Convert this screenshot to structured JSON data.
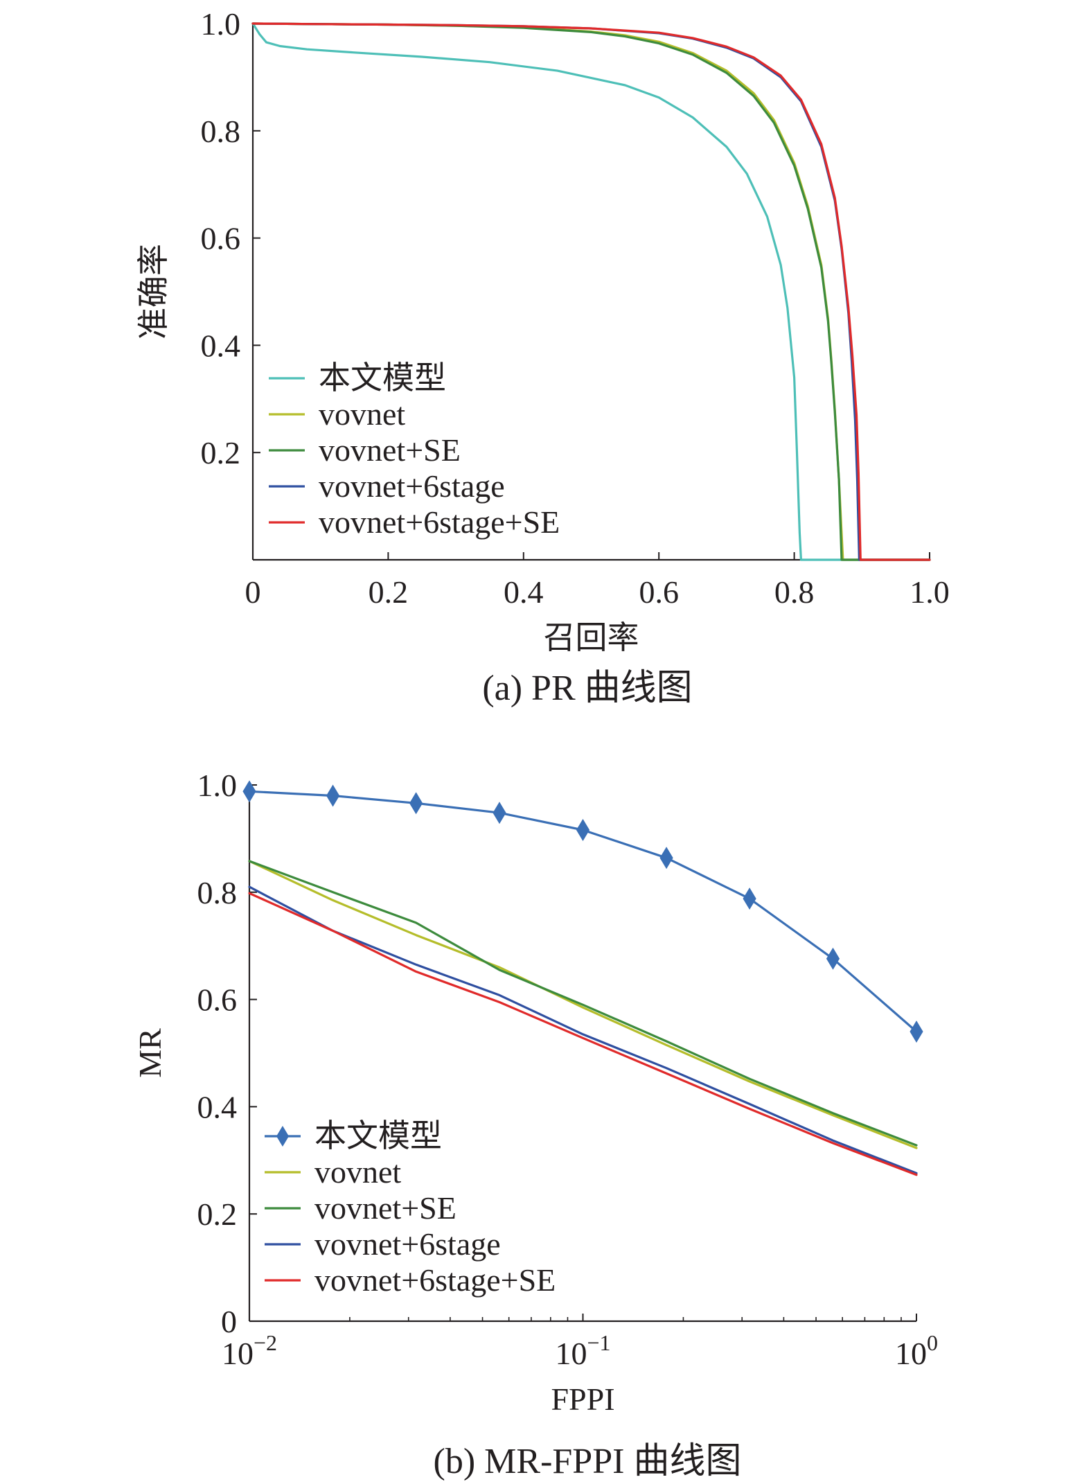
{
  "figure": {
    "caption_a": "(a) PR 曲线图",
    "caption_b": "(b) MR-FPPI 曲线图"
  },
  "chart_data": [
    {
      "type": "line",
      "title": "(a) PR 曲线图",
      "xlabel": "召回率",
      "ylabel": "准确率",
      "xlim": [
        0,
        1.0
      ],
      "ylim": [
        0,
        1.0
      ],
      "x_ticks": [
        {
          "value": 0,
          "label": "0"
        },
        {
          "value": 0.2,
          "label": "0.2"
        },
        {
          "value": 0.4,
          "label": "0.4"
        },
        {
          "value": 0.6,
          "label": "0.6"
        },
        {
          "value": 0.8,
          "label": "0.8"
        },
        {
          "value": 1.0,
          "label": "1.0"
        }
      ],
      "y_ticks": [
        {
          "value": 0.2,
          "label": "0.2"
        },
        {
          "value": 0.4,
          "label": "0.4"
        },
        {
          "value": 0.6,
          "label": "0.6"
        },
        {
          "value": 0.8,
          "label": "0.8"
        },
        {
          "value": 1.0,
          "label": "1.0"
        }
      ],
      "legend_position": "bottom-left",
      "series": [
        {
          "name": "本文模型",
          "color": "#4dbfb7",
          "x": [
            0,
            0.005,
            0.01,
            0.02,
            0.04,
            0.08,
            0.15,
            0.25,
            0.35,
            0.45,
            0.55,
            0.6,
            0.65,
            0.7,
            0.73,
            0.76,
            0.78,
            0.79,
            0.8,
            0.804,
            0.808,
            0.81,
            0.85,
            1.0
          ],
          "y": [
            1.0,
            0.99,
            0.98,
            0.965,
            0.958,
            0.952,
            0.946,
            0.938,
            0.928,
            0.912,
            0.885,
            0.862,
            0.825,
            0.77,
            0.72,
            0.64,
            0.55,
            0.47,
            0.34,
            0.2,
            0.05,
            0.0,
            0.0,
            0.0
          ]
        },
        {
          "name": "vovnet",
          "color": "#b5bd2a",
          "x": [
            0,
            0.1,
            0.2,
            0.3,
            0.4,
            0.5,
            0.55,
            0.6,
            0.65,
            0.7,
            0.74,
            0.77,
            0.8,
            0.82,
            0.84,
            0.85,
            0.855,
            0.86,
            0.866,
            0.872,
            0.9,
            1.0
          ],
          "y": [
            1.0,
            0.999,
            0.998,
            0.996,
            0.993,
            0.985,
            0.978,
            0.966,
            0.945,
            0.912,
            0.87,
            0.82,
            0.74,
            0.66,
            0.55,
            0.45,
            0.37,
            0.28,
            0.15,
            0.0,
            0.0,
            0.0
          ]
        },
        {
          "name": "vovnet+SE",
          "color": "#3d8b3d",
          "x": [
            0,
            0.1,
            0.2,
            0.3,
            0.4,
            0.5,
            0.55,
            0.6,
            0.65,
            0.7,
            0.74,
            0.77,
            0.8,
            0.82,
            0.84,
            0.85,
            0.855,
            0.86,
            0.866,
            0.87,
            0.9,
            1.0
          ],
          "y": [
            1.0,
            0.999,
            0.998,
            0.996,
            0.992,
            0.984,
            0.976,
            0.963,
            0.942,
            0.908,
            0.865,
            0.815,
            0.735,
            0.655,
            0.545,
            0.445,
            0.365,
            0.275,
            0.15,
            0.0,
            0.0,
            0.0
          ]
        },
        {
          "name": "vovnet+6stage",
          "color": "#2f4fa0",
          "x": [
            0,
            0.1,
            0.2,
            0.3,
            0.4,
            0.5,
            0.6,
            0.65,
            0.7,
            0.74,
            0.78,
            0.81,
            0.84,
            0.86,
            0.87,
            0.88,
            0.885,
            0.89,
            0.893,
            0.896,
            1.0
          ],
          "y": [
            1.0,
            0.999,
            0.998,
            0.997,
            0.995,
            0.991,
            0.982,
            0.972,
            0.955,
            0.935,
            0.9,
            0.855,
            0.77,
            0.67,
            0.58,
            0.46,
            0.37,
            0.26,
            0.15,
            0.0,
            0.0
          ]
        },
        {
          "name": "vovnet+6stage+SE",
          "color": "#e02a2a",
          "x": [
            0,
            0.1,
            0.2,
            0.3,
            0.4,
            0.5,
            0.6,
            0.65,
            0.7,
            0.74,
            0.78,
            0.81,
            0.84,
            0.86,
            0.87,
            0.88,
            0.886,
            0.892,
            0.895,
            0.898,
            1.0
          ],
          "y": [
            1.0,
            0.999,
            0.998,
            0.997,
            0.995,
            0.991,
            0.983,
            0.973,
            0.957,
            0.937,
            0.903,
            0.858,
            0.775,
            0.675,
            0.585,
            0.47,
            0.38,
            0.27,
            0.16,
            0.0,
            0.0
          ]
        }
      ]
    },
    {
      "type": "line",
      "title": "(b) MR-FPPI 曲线图",
      "xlabel": "FPPI",
      "ylabel": "MR",
      "xscale": "log",
      "xlim": [
        0.01,
        1
      ],
      "ylim": [
        0,
        1.0
      ],
      "x_ticks": [
        {
          "value": 0.01,
          "base": "10",
          "exp": "−2"
        },
        {
          "value": 0.1,
          "base": "10",
          "exp": "−1"
        },
        {
          "value": 1,
          "base": "10",
          "exp": "0"
        }
      ],
      "y_ticks": [
        {
          "value": 0,
          "label": "0"
        },
        {
          "value": 0.2,
          "label": "0.2"
        },
        {
          "value": 0.4,
          "label": "0.4"
        },
        {
          "value": 0.6,
          "label": "0.6"
        },
        {
          "value": 0.8,
          "label": "0.8"
        },
        {
          "value": 1.0,
          "label": "1.0"
        }
      ],
      "legend_position": "bottom-left",
      "series": [
        {
          "name": "本文模型",
          "color": "#3a6fb5",
          "marker": "diamond",
          "x": [
            0.01,
            0.0178,
            0.0316,
            0.0562,
            0.1,
            0.178,
            0.316,
            0.562,
            1.0
          ],
          "y": [
            0.988,
            0.98,
            0.966,
            0.948,
            0.916,
            0.864,
            0.788,
            0.676,
            0.54
          ]
        },
        {
          "name": "vovnet",
          "color": "#b5bd2a",
          "x": [
            0.01,
            0.0178,
            0.0316,
            0.0562,
            0.1,
            0.178,
            0.316,
            0.562,
            1.0
          ],
          "y": [
            0.858,
            0.785,
            0.72,
            0.66,
            0.585,
            0.515,
            0.447,
            0.384,
            0.323
          ]
        },
        {
          "name": "vovnet+SE",
          "color": "#3d8b3d",
          "x": [
            0.01,
            0.0178,
            0.0316,
            0.0562,
            0.1,
            0.178,
            0.316,
            0.562,
            1.0
          ],
          "y": [
            0.858,
            0.8,
            0.743,
            0.655,
            0.59,
            0.522,
            0.452,
            0.388,
            0.328
          ]
        },
        {
          "name": "vovnet+6stage",
          "color": "#2f4fa0",
          "x": [
            0.01,
            0.0178,
            0.0316,
            0.0562,
            0.1,
            0.178,
            0.316,
            0.562,
            1.0
          ],
          "y": [
            0.81,
            0.728,
            0.665,
            0.608,
            0.535,
            0.472,
            0.405,
            0.337,
            0.276
          ]
        },
        {
          "name": "vovnet+6stage+SE",
          "color": "#e02a2a",
          "x": [
            0.01,
            0.0178,
            0.0316,
            0.0562,
            0.1,
            0.178,
            0.316,
            0.562,
            1.0
          ],
          "y": [
            0.798,
            0.728,
            0.652,
            0.595,
            0.528,
            0.462,
            0.396,
            0.332,
            0.273
          ]
        }
      ]
    }
  ]
}
